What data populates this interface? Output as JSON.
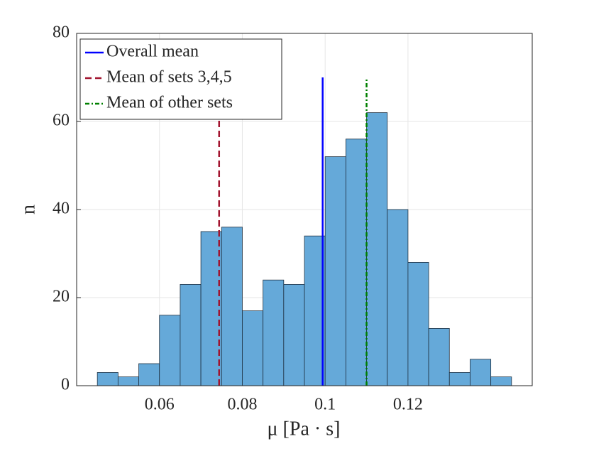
{
  "chart_data": {
    "type": "histogram",
    "xlabel": "μ [Pa · s]",
    "ylabel": "n",
    "bins": [
      0.045,
      0.05,
      0.055,
      0.06,
      0.065,
      0.07,
      0.075,
      0.08,
      0.085,
      0.09,
      0.095,
      0.1,
      0.105,
      0.11,
      0.115,
      0.12,
      0.125,
      0.13,
      0.135,
      0.14,
      0.145
    ],
    "counts": [
      3,
      2,
      5,
      16,
      23,
      35,
      36,
      17,
      24,
      23,
      34,
      52,
      56,
      62,
      40,
      28,
      13,
      3,
      6,
      2
    ],
    "color": "#65a9d9",
    "xlim": [
      0.04,
      0.15
    ],
    "xticks": [
      0.06,
      0.08,
      0.1,
      0.12
    ],
    "ylim": [
      0,
      80
    ],
    "yticks": [
      0,
      20,
      40,
      60,
      80
    ],
    "grid": true,
    "legend": "upper left",
    "lines": [
      {
        "name": "Overall mean",
        "color": "#0000ff",
        "dash": "solid",
        "x": 0.0994,
        "y": [
          0,
          70
        ]
      },
      {
        "name": "Mean of sets 3,4,5",
        "color": "#a2142f",
        "dash": "dashed",
        "x": 0.0744,
        "y": [
          0,
          70
        ]
      },
      {
        "name": "Mean of other sets",
        "color": "#008000",
        "dash": "dashdot",
        "x": 0.11,
        "y": [
          0,
          70
        ]
      }
    ]
  }
}
